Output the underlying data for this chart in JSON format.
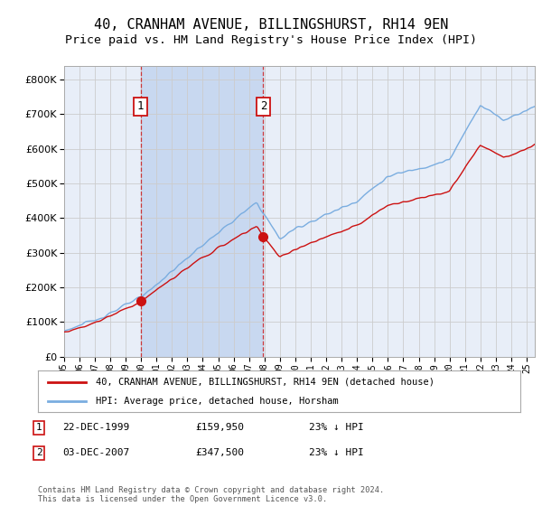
{
  "title": "40, CRANHAM AVENUE, BILLINGSHURST, RH14 9EN",
  "subtitle": "Price paid vs. HM Land Registry's House Price Index (HPI)",
  "ytick_values": [
    0,
    100000,
    200000,
    300000,
    400000,
    500000,
    600000,
    700000,
    800000
  ],
  "ylim": [
    0,
    840000
  ],
  "xlim_start": 1995.0,
  "xlim_end": 2025.5,
  "hpi_color": "#7aade0",
  "price_color": "#cc1111",
  "background_color": "#e8eef8",
  "shade_color": "#c8d8f0",
  "grid_color": "#cccccc",
  "purchase1_date": 1999.97,
  "purchase1_price": 159950,
  "purchase2_date": 2007.92,
  "purchase2_price": 347500,
  "legend_label_red": "40, CRANHAM AVENUE, BILLINGSHURST, RH14 9EN (detached house)",
  "legend_label_blue": "HPI: Average price, detached house, Horsham",
  "table_row1": [
    "1",
    "22-DEC-1999",
    "£159,950",
    "23% ↓ HPI"
  ],
  "table_row2": [
    "2",
    "03-DEC-2007",
    "£347,500",
    "23% ↓ HPI"
  ],
  "footnote": "Contains HM Land Registry data © Crown copyright and database right 2024.\nThis data is licensed under the Open Government Licence v3.0.",
  "title_fontsize": 11,
  "subtitle_fontsize": 9.5,
  "axis_fontsize": 8
}
